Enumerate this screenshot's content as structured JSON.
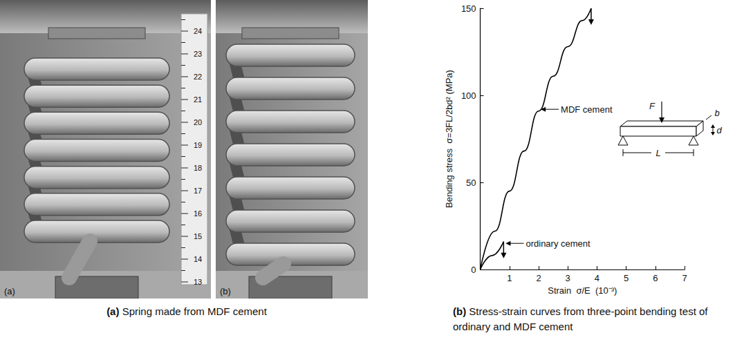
{
  "photos": [
    {
      "letter": "(a)",
      "ruler": [
        13,
        14,
        15,
        16,
        17,
        18,
        19,
        20,
        21,
        22,
        23,
        24
      ]
    },
    {
      "letter": "(b)"
    }
  ],
  "photo_caption": {
    "letter": "(a)",
    "text": "Spring made from MDF cement"
  },
  "chart_data": {
    "type": "line",
    "caption": {
      "letter": "(b)",
      "text": "Stress-strain curves from three-point bending test of ordinary and MDF cement"
    },
    "xlabel": "Strain  σ/E  (10⁻³)",
    "ylabel": "Bending stress  σ=3FL/2bd² (MPa)",
    "xlim": [
      0,
      7
    ],
    "xticks": [
      1,
      2,
      3,
      4,
      5,
      6,
      7
    ],
    "ylim": [
      0,
      150
    ],
    "yticks": [
      0,
      50,
      100,
      150
    ],
    "grid": false,
    "series": [
      {
        "name": "MDF cement",
        "color": "#000000",
        "x": [
          0,
          0.5,
          1,
          1.5,
          2,
          2.5,
          3,
          3.5,
          3.8
        ],
        "values": [
          0,
          22,
          45,
          68,
          91,
          111,
          128,
          143,
          150
        ],
        "label_point": [
          2.05,
          92
        ]
      },
      {
        "name": "ordinary cement",
        "color": "#000000",
        "x": [
          0,
          0.4,
          0.8
        ],
        "values": [
          0,
          8,
          16
        ],
        "label_point": [
          0.85,
          15
        ]
      }
    ],
    "inset": {
      "force": "F",
      "width": "b",
      "depth": "d",
      "span": "L"
    }
  }
}
